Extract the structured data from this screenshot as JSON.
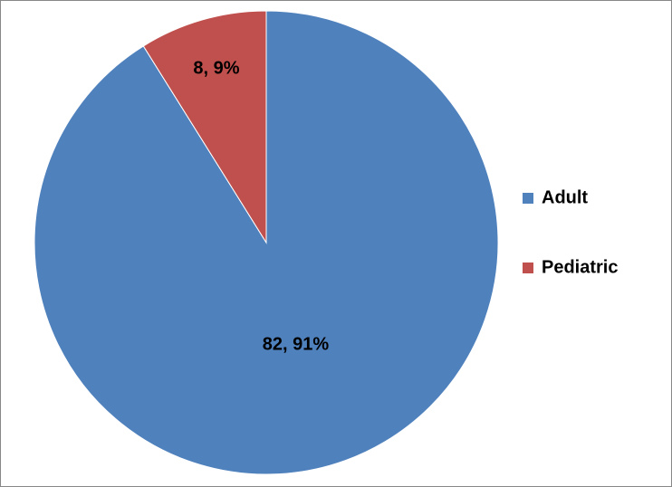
{
  "chart_data": {
    "type": "pie",
    "categories": [
      "Adult",
      "Pediatric"
    ],
    "values": [
      82,
      8
    ],
    "value_labels": [
      "82, 91%",
      "8, 9%"
    ],
    "colors": [
      "#4f81bd",
      "#c0504d"
    ],
    "legend": "right"
  }
}
